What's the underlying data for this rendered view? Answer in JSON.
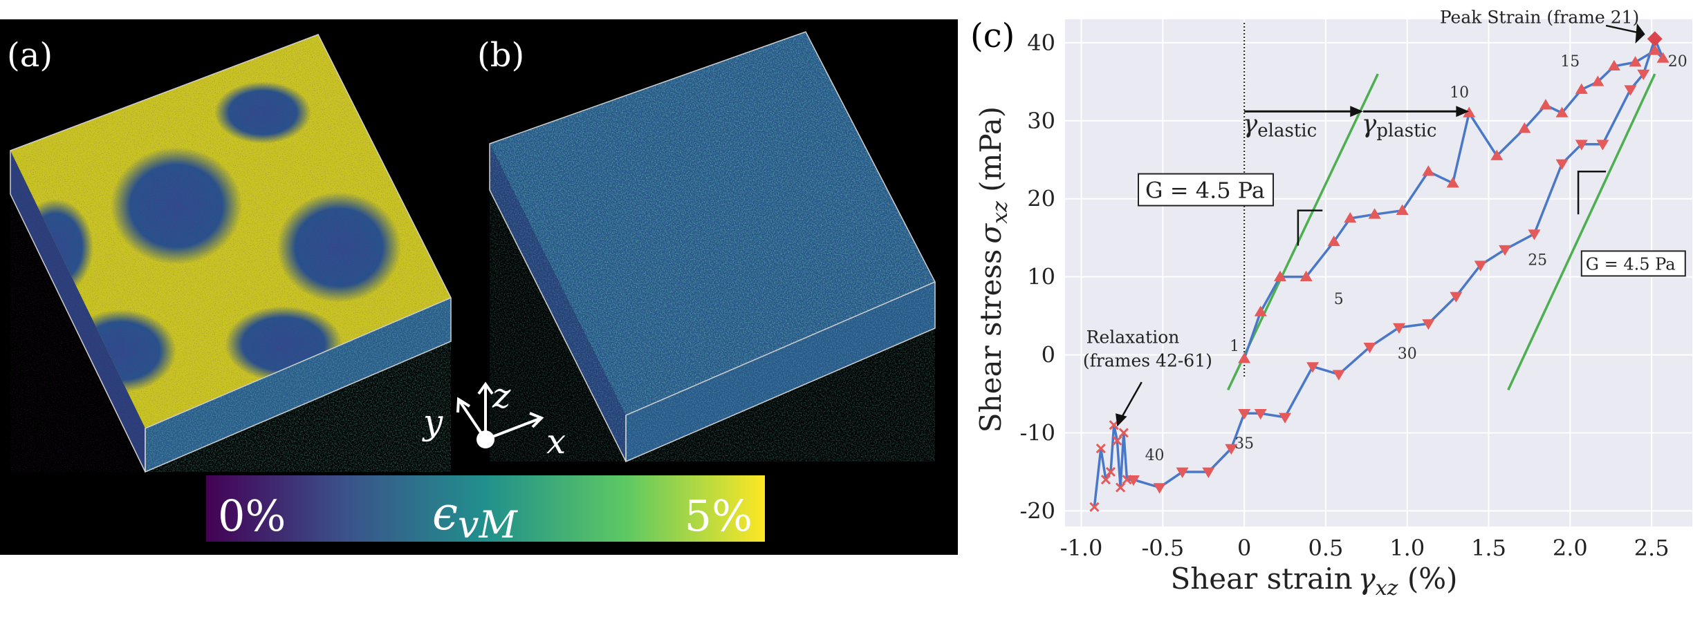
{
  "panel_a": {
    "tag": "(a)"
  },
  "panel_b": {
    "tag": "(b)"
  },
  "axes_glyph": {
    "y": "y",
    "z": "z",
    "x": "x"
  },
  "colorbar": {
    "min_label": "0%",
    "max_label": "5%",
    "symbol_main": "ϵ",
    "symbol_sub": "vM",
    "colors": [
      "#440154",
      "#3b528b",
      "#21908c",
      "#5dc863",
      "#fde725"
    ]
  },
  "chart_data": {
    "type": "line",
    "panel_tag": "(c)",
    "xlabel": {
      "main": "Shear strain",
      "symbol": "γ",
      "sub": "xz",
      "unit": " (%)"
    },
    "ylabel": {
      "main": "Shear stress",
      "symbol": "σ",
      "sub": "xz",
      "unit": " (mPa)"
    },
    "xlim": [
      -1.1,
      2.75
    ],
    "ylim": [
      -22,
      43
    ],
    "xticks": [
      -1.0,
      -0.5,
      0,
      0.5,
      1.0,
      1.5,
      2.0,
      2.5
    ],
    "xtick_labels": [
      "-1.0",
      "-0.5",
      "0",
      "0.5",
      "1.0",
      "1.5",
      "2.0",
      "2.5"
    ],
    "yticks": [
      -20,
      -10,
      0,
      10,
      20,
      30,
      40
    ],
    "ytick_labels": [
      "-20",
      "-10",
      "0",
      "10",
      "20",
      "30",
      "40"
    ],
    "grid": true,
    "series": [
      {
        "values": [
          {
            "x": 0.0,
            "y": -0.5
          },
          {
            "x": 0.1,
            "y": 5.5
          },
          {
            "x": 0.22,
            "y": 10
          },
          {
            "x": 0.38,
            "y": 10
          },
          {
            "x": 0.55,
            "y": 14.5
          },
          {
            "x": 0.65,
            "y": 17.5
          },
          {
            "x": 0.8,
            "y": 18
          },
          {
            "x": 0.97,
            "y": 18.5
          },
          {
            "x": 1.13,
            "y": 23.5
          },
          {
            "x": 1.28,
            "y": 22
          },
          {
            "x": 1.38,
            "y": 31
          },
          {
            "x": 1.55,
            "y": 25.5
          },
          {
            "x": 1.72,
            "y": 29
          },
          {
            "x": 1.85,
            "y": 32
          },
          {
            "x": 1.95,
            "y": 31
          },
          {
            "x": 2.07,
            "y": 34
          },
          {
            "x": 2.17,
            "y": 35
          },
          {
            "x": 2.27,
            "y": 37
          },
          {
            "x": 2.4,
            "y": 37.5
          },
          {
            "x": 2.52,
            "y": 39
          },
          {
            "x": 2.57,
            "y": 38
          },
          {
            "x": 2.52,
            "y": 40.5
          },
          {
            "x": 2.45,
            "y": 36
          },
          {
            "x": 2.37,
            "y": 34
          },
          {
            "x": 2.2,
            "y": 27
          },
          {
            "x": 2.07,
            "y": 27
          },
          {
            "x": 1.95,
            "y": 24.5
          },
          {
            "x": 1.78,
            "y": 15.5
          },
          {
            "x": 1.6,
            "y": 13.5
          },
          {
            "x": 1.45,
            "y": 11.5
          },
          {
            "x": 1.3,
            "y": 7.5
          },
          {
            "x": 1.13,
            "y": 4
          },
          {
            "x": 0.95,
            "y": 3.5
          },
          {
            "x": 0.77,
            "y": 1
          },
          {
            "x": 0.58,
            "y": -2.5
          },
          {
            "x": 0.42,
            "y": -1.5
          },
          {
            "x": 0.25,
            "y": -8
          },
          {
            "x": 0.1,
            "y": -7.5
          },
          {
            "x": 0.0,
            "y": -7.5
          },
          {
            "x": -0.08,
            "y": -12
          },
          {
            "x": -0.22,
            "y": -15
          },
          {
            "x": -0.38,
            "y": -15
          },
          {
            "x": -0.52,
            "y": -17
          },
          {
            "x": -0.68,
            "y": -16
          },
          {
            "x": -0.72,
            "y": -16
          },
          {
            "x": -0.74,
            "y": -10
          },
          {
            "x": -0.76,
            "y": -17
          },
          {
            "x": -0.78,
            "y": -11
          },
          {
            "x": -0.8,
            "y": -9
          },
          {
            "x": -0.82,
            "y": -15
          },
          {
            "x": -0.85,
            "y": -16
          },
          {
            "x": -0.88,
            "y": -12
          },
          {
            "x": -0.92,
            "y": -19.5
          }
        ],
        "loading_up_indices": [
          0,
          1,
          2,
          3,
          4,
          5,
          6,
          7,
          8,
          9,
          10,
          11,
          12,
          13,
          14,
          15,
          16,
          17,
          18,
          19,
          20
        ],
        "peak_index": 21,
        "loading_down_indices": [
          22,
          23,
          24,
          25,
          26,
          27,
          28,
          29,
          30,
          31,
          32,
          33,
          34,
          35,
          36,
          37,
          38,
          39,
          40,
          41,
          42,
          43
        ],
        "relaxation_indices": [
          44,
          45,
          46,
          47,
          48,
          49,
          50,
          51,
          52
        ]
      }
    ],
    "point_labels": [
      {
        "text": "1",
        "x": -0.06,
        "y": 0.5
      },
      {
        "text": "5",
        "x": 0.58,
        "y": 6.5
      },
      {
        "text": "10",
        "x": 1.32,
        "y": 33
      },
      {
        "text": "15",
        "x": 2.0,
        "y": 37
      },
      {
        "text": "20",
        "x": 2.66,
        "y": 37
      },
      {
        "text": "25",
        "x": 1.8,
        "y": 11.5
      },
      {
        "text": "30",
        "x": 1.0,
        "y": -0.5
      },
      {
        "text": "35",
        "x": 0.0,
        "y": -12
      },
      {
        "text": "40",
        "x": -0.55,
        "y": -13.5
      }
    ],
    "slope_lines": [
      {
        "x1": -0.1,
        "y1": -4.5,
        "x2": 0.82,
        "y2": 36
      },
      {
        "x1": 1.62,
        "y1": -4.5,
        "x2": 2.52,
        "y2": 36
      }
    ],
    "slope_triangles": [
      {
        "x1": 0.33,
        "y1": 14,
        "x2": 0.48,
        "y2": 18.5
      },
      {
        "x1": 2.05,
        "y1": 18,
        "x2": 2.22,
        "y2": 23.5
      }
    ],
    "annotations": {
      "peak": "Peak Strain (frame 21)",
      "relaxation_line1": "Relaxation",
      "relaxation_line2": "(frames 42-61)",
      "gamma_elastic_symbol": "γ",
      "gamma_elastic_sub": "elastic",
      "gamma_plastic_symbol": "γ",
      "gamma_plastic_sub": "plastic",
      "modulus_box_1": "G = 4.5 Pa",
      "modulus_box_2": "G = 4.5 Pa"
    },
    "colors": {
      "line": "#4a78c8",
      "up_marker": "#e45a5a",
      "down_marker": "#e45a5a",
      "peak_marker": "#d9464b",
      "relax_marker": "#e45a5a",
      "slope": "#4caf50",
      "background": "#eaeaf2"
    }
  }
}
